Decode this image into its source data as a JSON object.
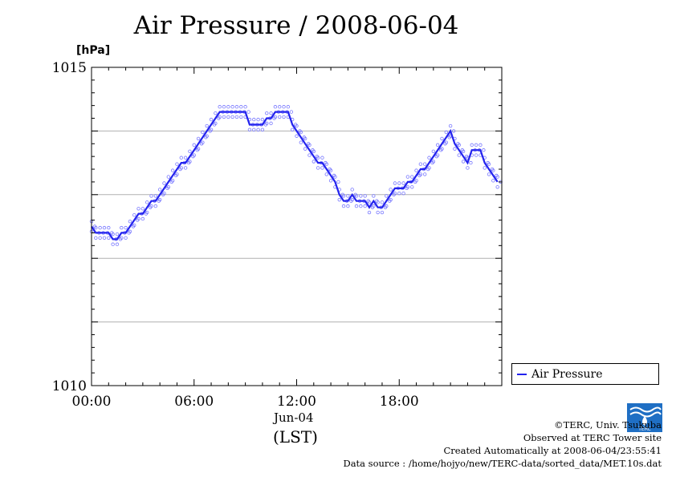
{
  "chart_data": {
    "type": "line",
    "title": "Air Pressure / 2008-06-04",
    "ylabel": "[hPa]",
    "ylim": [
      1010,
      1015
    ],
    "xlim": [
      0,
      24
    ],
    "x_ticks": [
      0,
      6,
      12,
      18
    ],
    "x_tick_labels": [
      "00:00",
      "06:00",
      "12:00",
      "18:00"
    ],
    "y_ticks": [
      1010,
      1015
    ],
    "y_tick_labels": [
      "1010",
      "1015"
    ],
    "grid": "horizontal",
    "x_date_label": "Jun-04",
    "x_unit_label": "(LST)",
    "legend_position": "right",
    "series": [
      {
        "name": "Air Pressure",
        "color": "#2222ee",
        "x": [
          0.0,
          0.25,
          0.5,
          0.75,
          1.0,
          1.25,
          1.5,
          1.75,
          2.0,
          2.25,
          2.5,
          2.75,
          3.0,
          3.25,
          3.5,
          3.75,
          4.0,
          4.25,
          4.5,
          4.75,
          5.0,
          5.25,
          5.5,
          5.75,
          6.0,
          6.25,
          6.5,
          6.75,
          7.0,
          7.25,
          7.5,
          7.75,
          8.0,
          8.25,
          8.5,
          8.75,
          9.0,
          9.25,
          9.5,
          9.75,
          10.0,
          10.25,
          10.5,
          10.75,
          11.0,
          11.25,
          11.5,
          11.75,
          12.0,
          12.25,
          12.5,
          12.75,
          13.0,
          13.25,
          13.5,
          13.75,
          14.0,
          14.25,
          14.5,
          14.75,
          15.0,
          15.25,
          15.5,
          15.75,
          16.0,
          16.25,
          16.5,
          16.75,
          17.0,
          17.25,
          17.5,
          17.75,
          18.0,
          18.25,
          18.5,
          18.75,
          19.0,
          19.25,
          19.5,
          19.75,
          20.0,
          20.25,
          20.5,
          20.75,
          21.0,
          21.25,
          21.5,
          21.75,
          22.0,
          22.25,
          22.5,
          22.75,
          23.0,
          23.25,
          23.5,
          23.75
        ],
        "values": [
          1012.5,
          1012.4,
          1012.4,
          1012.4,
          1012.4,
          1012.3,
          1012.3,
          1012.4,
          1012.4,
          1012.5,
          1012.6,
          1012.7,
          1012.7,
          1012.8,
          1012.9,
          1012.9,
          1013.0,
          1013.1,
          1013.2,
          1013.3,
          1013.4,
          1013.5,
          1013.5,
          1013.6,
          1013.7,
          1013.8,
          1013.9,
          1014.0,
          1014.1,
          1014.2,
          1014.3,
          1014.3,
          1014.3,
          1014.3,
          1014.3,
          1014.3,
          1014.3,
          1014.1,
          1014.1,
          1014.1,
          1014.1,
          1014.2,
          1014.2,
          1014.3,
          1014.3,
          1014.3,
          1014.3,
          1014.1,
          1014.0,
          1013.9,
          1013.8,
          1013.7,
          1013.6,
          1013.5,
          1013.5,
          1013.4,
          1013.3,
          1013.2,
          1013.0,
          1012.9,
          1012.9,
          1013.0,
          1012.9,
          1012.9,
          1012.9,
          1012.8,
          1012.9,
          1012.8,
          1012.8,
          1012.9,
          1013.0,
          1013.1,
          1013.1,
          1013.1,
          1013.2,
          1013.2,
          1013.3,
          1013.4,
          1013.4,
          1013.5,
          1013.6,
          1013.7,
          1013.8,
          1013.9,
          1014.0,
          1013.8,
          1013.7,
          1013.6,
          1013.5,
          1013.7,
          1013.7,
          1013.7,
          1013.5,
          1013.4,
          1013.3,
          1013.2
        ]
      }
    ]
  },
  "credits": {
    "copyright": "©TERC, Univ. Tsukuba",
    "observed": "Observed at TERC Tower site",
    "created": "Created Automatically at 2008-06-04/23:55:41",
    "source": "Data source : /home/hojyo/new/TERC-data/sorted_data/MET.10s.dat",
    "logo_text": "TERC"
  }
}
